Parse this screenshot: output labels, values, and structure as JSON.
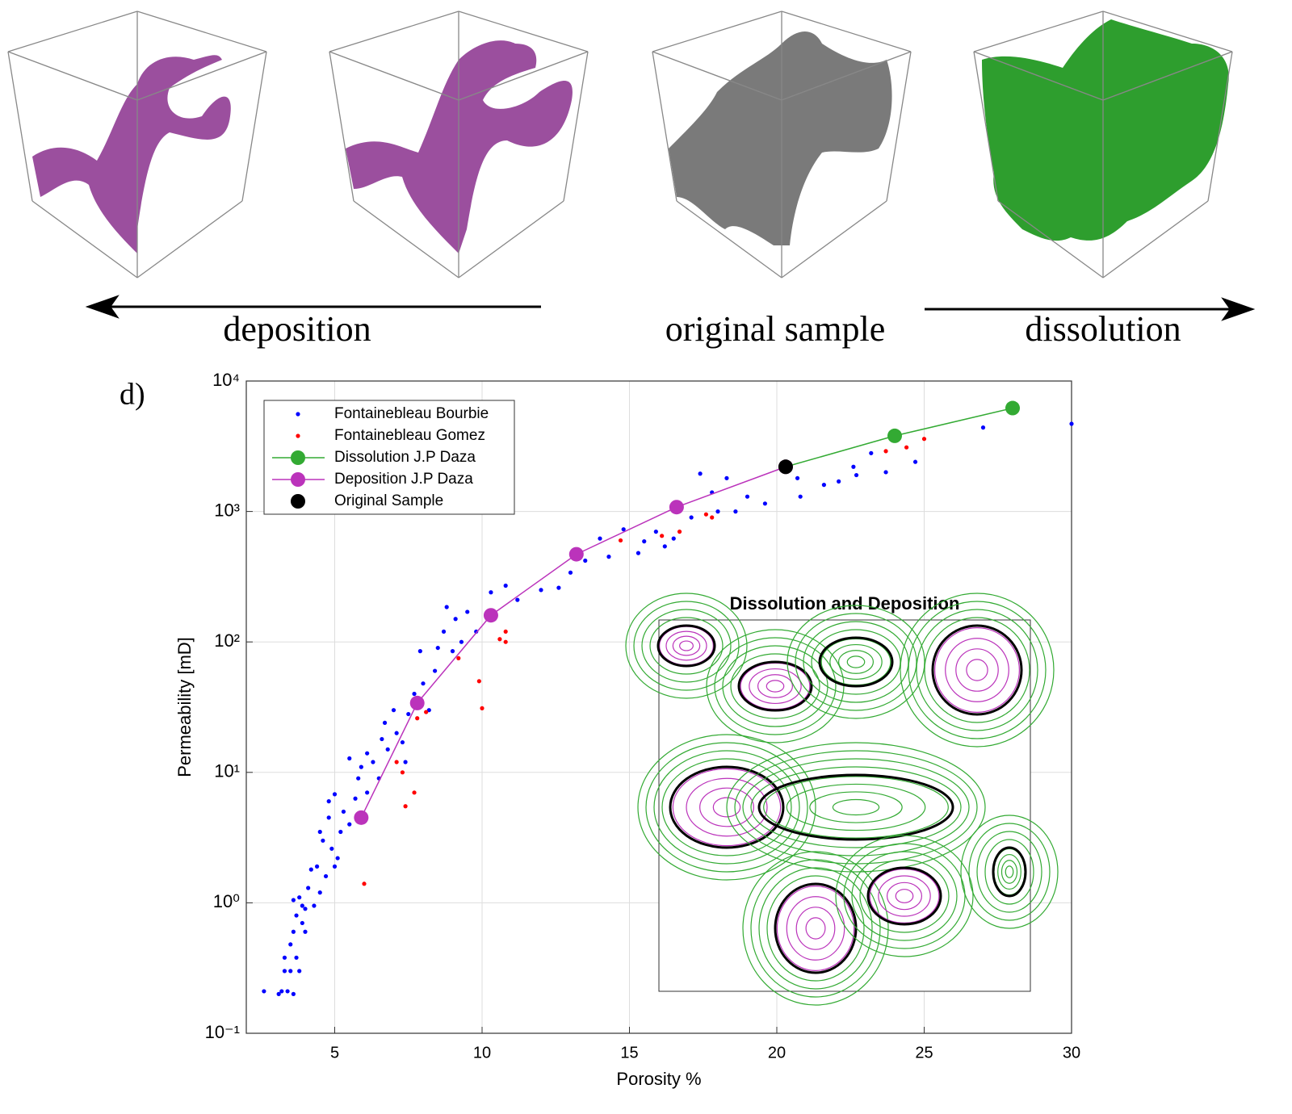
{
  "figure": {
    "panel_label": "d)",
    "process_labels": [
      "deposition",
      "original sample",
      "dissolution"
    ]
  },
  "chart_data": {
    "type": "scatter",
    "inset_title": "Dissolution and Deposition",
    "xlabel": "Porosity %",
    "ylabel": "Permeability [mD]",
    "xlim": [
      2,
      30
    ],
    "xticks": [
      5,
      10,
      15,
      20,
      25,
      30
    ],
    "ylim": [
      0.1,
      10000
    ],
    "ylog": true,
    "yticks": [
      {
        "value": 0.1,
        "label": "10⁻¹"
      },
      {
        "value": 1,
        "label": "10⁰"
      },
      {
        "value": 10,
        "label": "10¹"
      },
      {
        "value": 100,
        "label": "10²"
      },
      {
        "value": 1000,
        "label": "10³"
      },
      {
        "value": 10000,
        "label": "10⁴"
      }
    ],
    "grid": true,
    "legend": "upper left",
    "series": [
      {
        "name": "Fontainebleau Bourbie",
        "color": "#0000ff",
        "marker": "dot",
        "line": false,
        "x": [
          2.6,
          3.1,
          3.2,
          3.3,
          3.3,
          3.4,
          3.5,
          3.5,
          3.6,
          3.6,
          3.6,
          3.7,
          3.7,
          3.8,
          3.8,
          3.9,
          3.9,
          4.0,
          4.0,
          4.1,
          4.2,
          4.3,
          4.4,
          4.5,
          4.5,
          4.6,
          4.7,
          4.8,
          4.8,
          4.9,
          5.0,
          5.0,
          5.1,
          5.2,
          5.3,
          5.5,
          5.5,
          5.7,
          5.8,
          5.9,
          6.1,
          6.1,
          6.3,
          6.5,
          6.6,
          6.7,
          6.8,
          7.0,
          7.1,
          7.3,
          7.4,
          7.5,
          7.7,
          7.9,
          8.0,
          8.2,
          8.4,
          8.5,
          8.7,
          8.8,
          9.0,
          9.1,
          9.3,
          9.5,
          9.8,
          10.3,
          10.8,
          11.2,
          12,
          12.6,
          13,
          13.5,
          14,
          14.3,
          14.8,
          15.3,
          15.5,
          15.9,
          16.2,
          16.5,
          17.1,
          17.4,
          17.8,
          18.0,
          18.3,
          18.6,
          19,
          19.6,
          20.7,
          20.8,
          21.6,
          22.1,
          22.6,
          22.7,
          23.2,
          23.7,
          24.7,
          27,
          30
        ],
        "values": [
          0.21,
          0.2,
          0.21,
          0.3,
          0.38,
          0.21,
          0.3,
          0.48,
          0.2,
          0.6,
          1.05,
          0.38,
          0.8,
          1.1,
          0.3,
          0.7,
          0.95,
          0.6,
          0.9,
          1.3,
          1.8,
          0.95,
          1.9,
          1.2,
          3.5,
          3.0,
          1.6,
          4.5,
          6,
          2.6,
          6.8,
          1.9,
          2.2,
          3.5,
          5.0,
          4.0,
          12.8,
          6.3,
          9,
          11,
          14,
          7,
          12,
          9,
          18,
          24,
          15,
          30,
          20,
          17,
          12,
          28,
          40,
          85,
          48,
          30,
          60,
          90,
          120,
          185,
          85,
          150,
          100,
          170,
          120,
          240,
          270,
          210,
          250,
          260,
          340,
          420,
          620,
          450,
          730,
          480,
          590,
          700,
          540,
          620,
          900,
          1950,
          1400,
          1000,
          1800,
          1000,
          1300,
          1150,
          1800,
          1300,
          1600,
          1700,
          2200,
          1900,
          2800,
          2000,
          2400,
          4400,
          4700
        ]
      },
      {
        "name": "Fontainebleau Gomez",
        "color": "#ff0000",
        "marker": "dot",
        "line": false,
        "x": [
          6.0,
          7.1,
          7.3,
          7.4,
          7.7,
          7.8,
          8.1,
          9.2,
          9.9,
          10.0,
          10.6,
          10.8,
          10.8,
          14.7,
          16.1,
          16.7,
          17.6,
          17.8,
          23.7,
          24.4,
          25
        ],
        "values": [
          1.4,
          12,
          10,
          5.5,
          7,
          26,
          29,
          75,
          50,
          31,
          105,
          100,
          120,
          600,
          650,
          700,
          950,
          900,
          2900,
          3100,
          3600
        ]
      },
      {
        "name": "Dissolution J.P Daza",
        "color": "#33aa33",
        "marker": "circle",
        "line": true,
        "x": [
          20.3,
          24,
          28
        ],
        "values": [
          2200,
          3800,
          6200
        ]
      },
      {
        "name": "Deposition J.P Daza",
        "color": "#bb33bb",
        "marker": "circle",
        "line": true,
        "x": [
          5.9,
          7.8,
          10.3,
          13.2,
          16.6,
          20.3
        ],
        "values": [
          4.5,
          34,
          160,
          470,
          1080,
          2200
        ]
      },
      {
        "name": "Original Sample",
        "color": "#000000",
        "marker": "circle",
        "line": false,
        "x": [
          20.3
        ],
        "values": [
          2200
        ]
      }
    ]
  }
}
